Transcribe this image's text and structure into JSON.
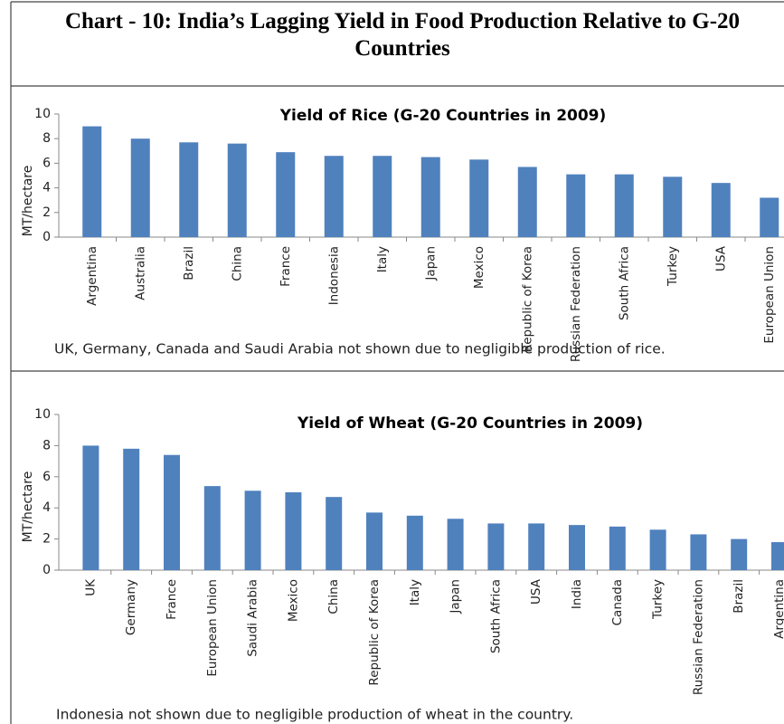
{
  "title": "Chart - 10: India’s Lagging Yield in Food Production Relative to G-20 Countries",
  "chart_data": [
    {
      "type": "bar",
      "title": "Yield of Rice (G-20 Countries in 2009)",
      "y_label": "MT/hectare",
      "categories": [
        "Argentina",
        "Australia",
        "Brazil",
        "China",
        "France",
        "Indonesia",
        "Italy",
        "Japan",
        "Mexico",
        "Republic of Korea",
        "Russian Federation",
        "South Africa",
        "Turkey",
        "USA",
        "European Union"
      ],
      "values": [
        9.0,
        8.0,
        7.7,
        7.6,
        6.9,
        6.6,
        6.6,
        6.5,
        6.3,
        5.7,
        5.1,
        5.1,
        4.9,
        4.4,
        3.2
      ],
      "color": "#4f81bd",
      "ylim": [
        0,
        10
      ],
      "yticks": [
        0,
        2,
        4,
        6,
        8,
        10
      ],
      "note": "UK, Germany, Canada and Saudi Arabia not shown due to negligible production of rice."
    },
    {
      "type": "bar",
      "title": "Yield of Wheat (G-20 Countries in 2009)",
      "y_label": "MT/hectare",
      "categories": [
        "UK",
        "Germany",
        "France",
        "European Union",
        "Saudi Arabia",
        "Mexico",
        "China",
        "Republic of Korea",
        "Italy",
        "Japan",
        "South Africa",
        "USA",
        "India",
        "Canada",
        "Turkey",
        "Russian Federation",
        "Brazil",
        "Argentina"
      ],
      "values": [
        8.0,
        7.8,
        7.4,
        5.4,
        5.1,
        5.0,
        4.7,
        3.7,
        3.5,
        3.3,
        3.0,
        3.0,
        2.9,
        2.8,
        2.6,
        2.3,
        2.0,
        1.8
      ],
      "color": "#4f81bd",
      "ylim": [
        0,
        10
      ],
      "yticks": [
        0,
        2,
        4,
        6,
        8,
        10
      ],
      "note": "Indonesia  not shown  due to negligible production of wheat in the country."
    }
  ]
}
